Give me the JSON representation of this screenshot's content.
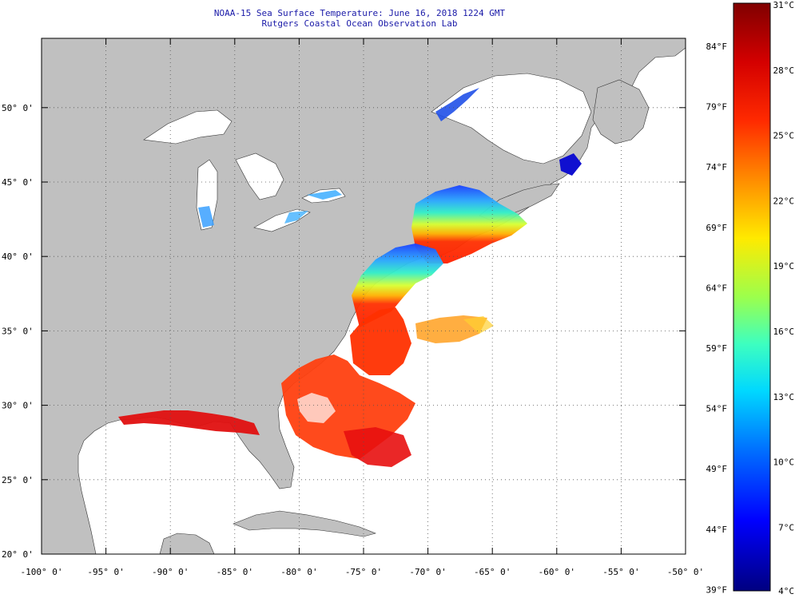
{
  "title": {
    "line1": "NOAA-15 Sea Surface Temperature:  June 16, 2018 1224 GMT",
    "line2": "Rutgers Coastal Ocean Observation Lab"
  },
  "map": {
    "lon_labels": [
      "-100° 0'",
      "-95° 0'",
      "-90° 0'",
      "-85° 0'",
      "-80° 0'",
      "-75° 0'",
      "-70° 0'",
      "-65° 0'",
      "-60° 0'",
      "-55° 0'",
      "-50° 0'"
    ],
    "lat_labels": [
      "20° 0'",
      "25° 0'",
      "30° 0'",
      "35° 0'",
      "40° 0'",
      "45° 0'",
      "50° 0'"
    ],
    "land_color": "#c0c0c0",
    "ocean_nodata_color": "#ffffff",
    "grid_style": "dotted"
  },
  "colorbar": {
    "celsius_labels": [
      "31°C",
      "28°C",
      "25°C",
      "22°C",
      "19°C",
      "16°C",
      "13°C",
      "10°C",
      "7°C",
      "4°C"
    ],
    "fahrenheit_labels": [
      "84°F",
      "79°F",
      "74°F",
      "69°F",
      "64°F",
      "59°F",
      "54°F",
      "49°F",
      "44°F",
      "39°F"
    ],
    "colors_top_to_bottom": [
      "#800000",
      "#ff0000",
      "#ff8000",
      "#ffff00",
      "#80ff80",
      "#00ffff",
      "#0080ff",
      "#0000ff",
      "#000080"
    ]
  }
}
